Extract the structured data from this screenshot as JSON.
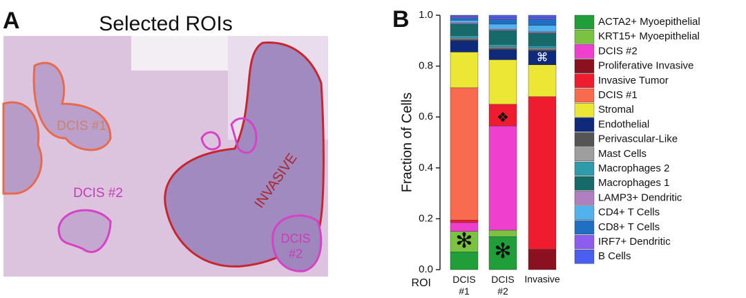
{
  "panel_a": {
    "label": "A",
    "title": "Selected ROIs",
    "roi_labels": [
      "DCIS #1",
      "DCIS #2",
      "INVASIVE",
      "DCIS",
      "#2"
    ]
  },
  "chart_data": {
    "type": "stacked_bar",
    "panel_label": "B",
    "y_label": "Fraction of Cells",
    "x_label": "ROI",
    "categories": [
      "DCIS #1",
      "DCIS #2",
      "Invasive"
    ],
    "ylim": [
      0,
      1
    ],
    "yticks": [
      {
        "value": 0,
        "label": "0.0"
      },
      0.2,
      0.4,
      0.6,
      0.8,
      {
        "value": 1,
        "label": "1.0"
      }
    ],
    "annotations": [
      "✻",
      "✻",
      "❖",
      "⌘"
    ],
    "series": [
      {
        "name": "ACTA2+ Myoepithelial",
        "color": "#1f9e3a",
        "values": [
          0.07,
          0.13,
          0
        ]
      },
      {
        "name": "KRT15+ Myoepithelial",
        "color": "#7cc242",
        "values": [
          0.08,
          0.025,
          0
        ]
      },
      {
        "name": "DCIS #2",
        "color": "#ef3fcf",
        "values": [
          0.035,
          0.41,
          0
        ]
      },
      {
        "name": "Proliferative Invasive",
        "color": "#8b1020",
        "values": [
          0,
          0,
          0.08
        ]
      },
      {
        "name": "Invasive Tumor",
        "color": "#ee1c2e",
        "values": [
          0.01,
          0.085,
          0.6
        ]
      },
      {
        "name": "DCIS #1",
        "color": "#f96b4f",
        "values": [
          0.52,
          0,
          0
        ]
      },
      {
        "name": "Stromal",
        "color": "#ece634",
        "values": [
          0.14,
          0.175,
          0.125
        ]
      },
      {
        "name": "Endothelial",
        "color": "#0f2a7a",
        "values": [
          0.045,
          0.04,
          0.055
        ]
      },
      {
        "name": "Perivascular-Like",
        "color": "#555555",
        "values": [
          0.005,
          0.005,
          0.005
        ]
      },
      {
        "name": "Mast Cells",
        "color": "#9e9e9e",
        "values": [
          0.005,
          0.005,
          0.005
        ]
      },
      {
        "name": "Macrophages 2",
        "color": "#2e9aaa",
        "values": [
          0.01,
          0.01,
          0.01
        ]
      },
      {
        "name": "Macrophages 1",
        "color": "#176a6a",
        "values": [
          0.045,
          0.055,
          0.05
        ]
      },
      {
        "name": "LAMP3+ Dendritic",
        "color": "#b07fc0",
        "values": [
          0.005,
          0.005,
          0.005
        ]
      },
      {
        "name": "CD4+ T Cells",
        "color": "#52b2ee",
        "values": [
          0.01,
          0.02,
          0.025
        ]
      },
      {
        "name": "CD8+ T Cells",
        "color": "#1f6fc4",
        "values": [
          0.01,
          0.02,
          0.025
        ]
      },
      {
        "name": "IRF7+ Dendritic",
        "color": "#8f5cf0",
        "values": [
          0.005,
          0.005,
          0.005
        ]
      },
      {
        "name": "B Cells",
        "color": "#4a5ef0",
        "values": [
          0.005,
          0.01,
          0.01
        ]
      }
    ]
  }
}
